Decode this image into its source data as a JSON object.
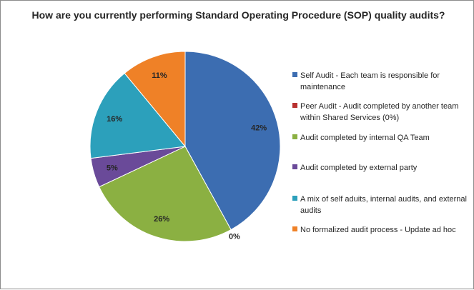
{
  "chart_data": {
    "type": "pie",
    "title": "How are you currently performing Standard Operating Procedure (SOP) quality audits?",
    "legend_position": "right",
    "slices": [
      {
        "label": "Self Audit - Each team is responsible for maintenance",
        "value": 42,
        "value_label": "42%",
        "color": "#3c6db1"
      },
      {
        "label": "Peer Audit - Audit completed by another team within Shared Services (0%)",
        "value": 0,
        "value_label": "0%",
        "color": "#b8312f"
      },
      {
        "label": "Audit completed by internal QA Team",
        "value": 26,
        "value_label": "26%",
        "color": "#8bb042"
      },
      {
        "label": "Audit completed by external party",
        "value": 5,
        "value_label": "5%",
        "color": "#6a4a99"
      },
      {
        "label": "A mix of self aduits, internal audits, and external audits",
        "value": 16,
        "value_label": "16%",
        "color": "#2ca0bb"
      },
      {
        "label": "No formalized audit process - Update ad hoc",
        "value": 11,
        "value_label": "11%",
        "color": "#ef8127"
      }
    ]
  }
}
